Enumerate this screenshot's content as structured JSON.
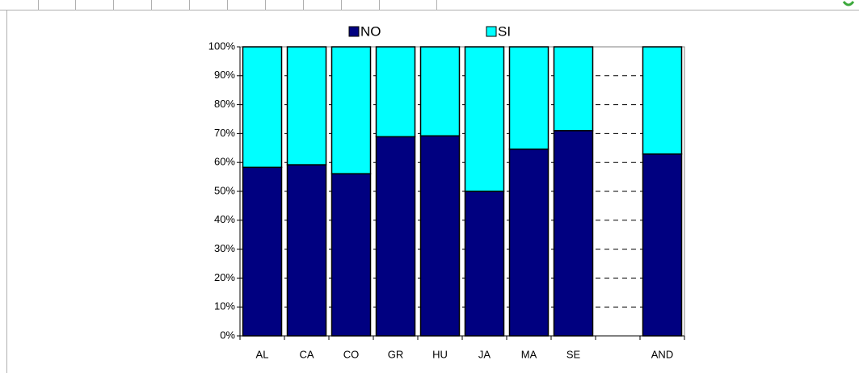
{
  "chart_data": {
    "type": "stacked_bar",
    "categories": [
      "AL",
      "CA",
      "CO",
      "GR",
      "HU",
      "JA",
      "MA",
      "SE",
      null,
      "AND"
    ],
    "series": [
      {
        "name": "NO",
        "color": "#000080",
        "values": [
          58.3,
          59.2,
          56.1,
          68.9,
          69.2,
          50.0,
          64.6,
          71.0,
          null,
          62.9
        ]
      },
      {
        "name": "SI",
        "color": "#00ffff",
        "values": [
          41.7,
          40.8,
          43.9,
          31.1,
          30.8,
          50.0,
          35.4,
          29.0,
          null,
          37.1
        ]
      }
    ],
    "ylim": [
      0,
      100
    ],
    "yticks": [
      {
        "value": 0,
        "label": "0%"
      },
      {
        "value": 10,
        "label": "10%"
      },
      {
        "value": 20,
        "label": "20%"
      },
      {
        "value": 30,
        "label": "30%"
      },
      {
        "value": 40,
        "label": "40%"
      },
      {
        "value": 50,
        "label": "50%"
      },
      {
        "value": 60,
        "label": "60%"
      },
      {
        "value": 70,
        "label": "70%"
      },
      {
        "value": 80,
        "label": "80%"
      },
      {
        "value": 90,
        "label": "90%"
      },
      {
        "value": 100,
        "label": "100%"
      }
    ],
    "grid": true,
    "legend": "top"
  }
}
